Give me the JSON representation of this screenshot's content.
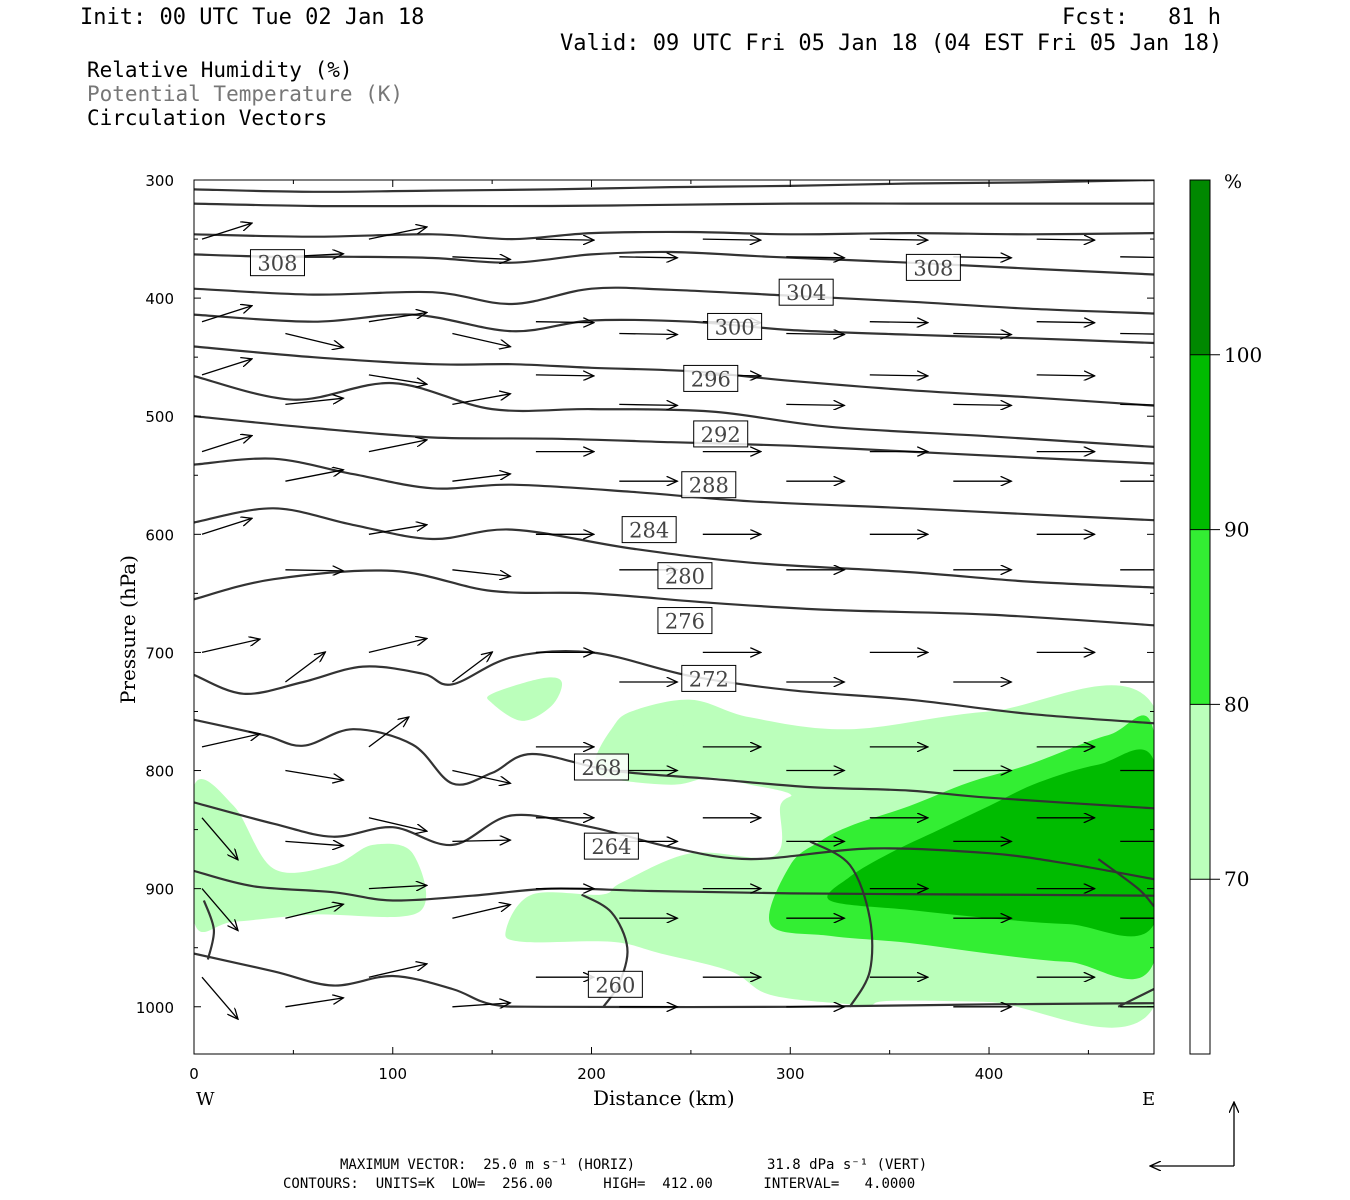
{
  "header": {
    "init": "Init: 00 UTC Tue 02 Jan 18",
    "fcst": "Fcst:   81 h",
    "valid": "Valid: 09 UTC Fri 05 Jan 18 (04 EST Fri 05 Jan 18)"
  },
  "legend": {
    "line1": "Relative Humidity (%)",
    "line2": "Potential Temperature (K)",
    "line3": "Circulation Vectors"
  },
  "chart_data": {
    "type": "cross-section",
    "xlabel": "Distance (km)",
    "ylabel": "Pressure (hPa)",
    "x_ticks": [
      "0",
      "100",
      "200",
      "300",
      "400"
    ],
    "x_tick_values": [
      0,
      100,
      200,
      300,
      400
    ],
    "y_ticks": [
      "300",
      "400",
      "500",
      "600",
      "700",
      "800",
      "900",
      "1000"
    ],
    "y_tick_values": [
      300,
      400,
      500,
      600,
      700,
      800,
      900,
      1000
    ],
    "xlim": [
      0,
      483
    ],
    "ylim": [
      1040,
      300
    ],
    "x_left_label": "W",
    "x_right_label": "E",
    "colorbar": {
      "unit": "%",
      "levels": [
        "70",
        "80",
        "90",
        "100"
      ],
      "colors": [
        "#ffffff",
        "#bbffbb",
        "#33ee33",
        "#00bb00",
        "#008800"
      ]
    },
    "theta_labels": [
      {
        "text": "308",
        "x": 42,
        "p": 370
      },
      {
        "text": "308",
        "x": 372,
        "p": 374
      },
      {
        "text": "304",
        "x": 308,
        "p": 395
      },
      {
        "text": "300",
        "x": 272,
        "p": 424
      },
      {
        "text": "296",
        "x": 260,
        "p": 468
      },
      {
        "text": "292",
        "x": 265,
        "p": 515
      },
      {
        "text": "288",
        "x": 259,
        "p": 558
      },
      {
        "text": "284",
        "x": 229,
        "p": 596
      },
      {
        "text": "280",
        "x": 247,
        "p": 635
      },
      {
        "text": "276",
        "x": 247,
        "p": 673
      },
      {
        "text": "272",
        "x": 259,
        "p": 722
      },
      {
        "text": "268",
        "x": 205,
        "p": 797
      },
      {
        "text": "264",
        "x": 210,
        "p": 864
      },
      {
        "text": "260",
        "x": 212,
        "p": 981
      }
    ],
    "theta_lines": [
      [
        [
          0,
          308
        ],
        [
          60,
          310
        ],
        [
          120,
          309
        ],
        [
          180,
          308
        ],
        [
          240,
          306
        ],
        [
          300,
          305
        ],
        [
          360,
          303
        ],
        [
          420,
          302
        ],
        [
          483,
          300
        ]
      ],
      [
        [
          0,
          320
        ],
        [
          60,
          322
        ],
        [
          120,
          322
        ],
        [
          180,
          322
        ],
        [
          240,
          321
        ],
        [
          300,
          320
        ],
        [
          360,
          320
        ],
        [
          420,
          320
        ],
        [
          483,
          320
        ]
      ],
      [
        [
          0,
          346
        ],
        [
          60,
          348
        ],
        [
          120,
          346
        ],
        [
          160,
          350
        ],
        [
          200,
          345
        ],
        [
          250,
          344
        ],
        [
          300,
          346
        ],
        [
          360,
          345
        ],
        [
          420,
          346
        ],
        [
          483,
          345
        ]
      ],
      [
        [
          0,
          363
        ],
        [
          40,
          365
        ],
        [
          80,
          365
        ],
        [
          120,
          366
        ],
        [
          160,
          370
        ],
        [
          200,
          363
        ],
        [
          240,
          361
        ],
        [
          290,
          365
        ],
        [
          360,
          370
        ],
        [
          420,
          375
        ],
        [
          483,
          380
        ]
      ],
      [
        [
          0,
          392
        ],
        [
          60,
          397
        ],
        [
          120,
          395
        ],
        [
          160,
          405
        ],
        [
          200,
          392
        ],
        [
          240,
          393
        ],
        [
          300,
          398
        ],
        [
          360,
          403
        ],
        [
          420,
          409
        ],
        [
          483,
          413
        ]
      ],
      [
        [
          0,
          414
        ],
        [
          60,
          420
        ],
        [
          110,
          414
        ],
        [
          160,
          428
        ],
        [
          200,
          419
        ],
        [
          250,
          420
        ],
        [
          300,
          427
        ],
        [
          360,
          431
        ],
        [
          420,
          434
        ],
        [
          483,
          438
        ]
      ],
      [
        [
          0,
          441
        ],
        [
          60,
          450
        ],
        [
          120,
          456
        ],
        [
          160,
          456
        ],
        [
          200,
          459
        ],
        [
          250,
          462
        ],
        [
          300,
          470
        ],
        [
          360,
          478
        ],
        [
          420,
          484
        ],
        [
          483,
          491
        ]
      ],
      [
        [
          0,
          466
        ],
        [
          50,
          486
        ],
        [
          100,
          472
        ],
        [
          150,
          494
        ],
        [
          200,
          494
        ],
        [
          260,
          496
        ],
        [
          320,
          509
        ],
        [
          400,
          517
        ],
        [
          483,
          526
        ]
      ],
      [
        [
          0,
          500
        ],
        [
          60,
          510
        ],
        [
          120,
          518
        ],
        [
          180,
          519
        ],
        [
          240,
          522
        ],
        [
          300,
          525
        ],
        [
          360,
          530
        ],
        [
          420,
          535
        ],
        [
          483,
          540
        ]
      ],
      [
        [
          0,
          541
        ],
        [
          40,
          536
        ],
        [
          80,
          549
        ],
        [
          120,
          561
        ],
        [
          160,
          558
        ],
        [
          220,
          564
        ],
        [
          280,
          572
        ],
        [
          360,
          578
        ],
        [
          420,
          583
        ],
        [
          483,
          588
        ]
      ],
      [
        [
          0,
          590
        ],
        [
          40,
          578
        ],
        [
          80,
          592
        ],
        [
          120,
          604
        ],
        [
          160,
          596
        ],
        [
          220,
          612
        ],
        [
          280,
          624
        ],
        [
          360,
          632
        ],
        [
          420,
          640
        ],
        [
          483,
          645
        ]
      ],
      [
        [
          0,
          655
        ],
        [
          40,
          638
        ],
        [
          100,
          631
        ],
        [
          150,
          648
        ],
        [
          200,
          650
        ],
        [
          260,
          658
        ],
        [
          320,
          664
        ],
        [
          400,
          668
        ],
        [
          483,
          677
        ]
      ],
      [
        [
          0,
          719
        ],
        [
          25,
          735
        ],
        [
          55,
          725
        ],
        [
          85,
          712
        ],
        [
          115,
          718
        ],
        [
          130,
          727
        ],
        [
          160,
          704
        ],
        [
          200,
          700
        ],
        [
          250,
          720
        ],
        [
          300,
          732
        ],
        [
          360,
          740
        ],
        [
          420,
          752
        ],
        [
          483,
          760
        ]
      ],
      [
        [
          0,
          757
        ],
        [
          35,
          770
        ],
        [
          55,
          779
        ],
        [
          80,
          765
        ],
        [
          110,
          778
        ],
        [
          130,
          811
        ],
        [
          150,
          802
        ],
        [
          170,
          786
        ],
        [
          210,
          800
        ],
        [
          260,
          807
        ],
        [
          310,
          814
        ],
        [
          360,
          817
        ],
        [
          400,
          823
        ],
        [
          483,
          832
        ]
      ],
      [
        [
          0,
          827
        ],
        [
          40,
          845
        ],
        [
          70,
          856
        ],
        [
          100,
          848
        ],
        [
          130,
          863
        ],
        [
          160,
          838
        ],
        [
          200,
          848
        ],
        [
          240,
          865
        ],
        [
          280,
          875
        ],
        [
          340,
          866
        ],
        [
          400,
          870
        ],
        [
          440,
          879
        ],
        [
          483,
          892
        ]
      ],
      [
        [
          0,
          885
        ],
        [
          30,
          898
        ],
        [
          70,
          903
        ],
        [
          100,
          910
        ],
        [
          140,
          906
        ],
        [
          180,
          900
        ],
        [
          230,
          902
        ],
        [
          300,
          904
        ],
        [
          400,
          905
        ],
        [
          483,
          906
        ]
      ],
      [
        [
          0,
          955
        ],
        [
          40,
          970
        ],
        [
          70,
          982
        ],
        [
          100,
          974
        ],
        [
          130,
          985
        ],
        [
          150,
          998
        ],
        [
          180,
          1000
        ],
        [
          300,
          1000
        ],
        [
          400,
          998
        ],
        [
          483,
          997
        ]
      ]
    ],
    "theta_260_closed": [
      [
        [
          206,
          1000
        ],
        [
          214,
          980
        ],
        [
          218,
          950
        ],
        [
          210,
          920
        ],
        [
          195,
          905
        ]
      ],
      [
        [
          330,
          1000
        ],
        [
          340,
          970
        ],
        [
          340,
          925
        ],
        [
          330,
          880
        ],
        [
          310,
          860
        ]
      ],
      [
        [
          465,
          1000
        ],
        [
          483,
          985
        ]
      ],
      [
        [
          455,
          875
        ],
        [
          475,
          900
        ],
        [
          483,
          915
        ]
      ],
      [
        [
          7,
          960
        ],
        [
          10,
          935
        ],
        [
          5,
          910
        ]
      ]
    ],
    "rh_regions": [
      {
        "level": "70-80",
        "poly": [
          [
            0,
            813
          ],
          [
            20,
            830
          ],
          [
            40,
            883
          ],
          [
            70,
            880
          ],
          [
            90,
            863
          ],
          [
            110,
            870
          ],
          [
            113,
            920
          ],
          [
            60,
            922
          ],
          [
            20,
            928
          ],
          [
            0,
            928
          ]
        ]
      },
      {
        "level": "70-80",
        "poly": [
          [
            150,
            735
          ],
          [
            175,
            722
          ],
          [
            185,
            725
          ],
          [
            180,
            745
          ],
          [
            165,
            758
          ],
          [
            150,
            743
          ]
        ]
      },
      {
        "level": "70-80",
        "poly": [
          [
            205,
            805
          ],
          [
            202,
            790
          ],
          [
            210,
            765
          ],
          [
            220,
            750
          ],
          [
            250,
            740
          ],
          [
            280,
            755
          ],
          [
            330,
            765
          ],
          [
            400,
            750
          ],
          [
            483,
            746
          ],
          [
            483,
            1000
          ],
          [
            400,
            996
          ],
          [
            350,
            995
          ],
          [
            340,
            999
          ],
          [
            330,
            998
          ],
          [
            290,
            990
          ],
          [
            270,
            970
          ],
          [
            235,
            955
          ],
          [
            210,
            945
          ],
          [
            165,
            945
          ],
          [
            157,
            935
          ],
          [
            170,
            905
          ],
          [
            205,
            905
          ],
          [
            215,
            895
          ],
          [
            250,
            870
          ],
          [
            292,
            872
          ],
          [
            295,
            830
          ],
          [
            300,
            820
          ],
          [
            280,
            812
          ],
          [
            260,
            806
          ],
          [
            240,
            812
          ]
        ]
      },
      {
        "level": "70-80",
        "poly": [
          [
            226,
            765
          ],
          [
            236,
            760
          ],
          [
            248,
            763
          ],
          [
            240,
            772
          ],
          [
            230,
            772
          ]
        ]
      },
      {
        "level": "80-90",
        "poly": [
          [
            290,
            930
          ],
          [
            300,
            880
          ],
          [
            315,
            860
          ],
          [
            330,
            847
          ],
          [
            360,
            830
          ],
          [
            390,
            810
          ],
          [
            420,
            795
          ],
          [
            460,
            770
          ],
          [
            483,
            768
          ],
          [
            483,
            962
          ],
          [
            440,
            962
          ],
          [
            400,
            955
          ],
          [
            360,
            946
          ],
          [
            320,
            940
          ]
        ]
      },
      {
        "level": "90-100",
        "poly": [
          [
            320,
            910
          ],
          [
            330,
            890
          ],
          [
            350,
            870
          ],
          [
            375,
            850
          ],
          [
            400,
            830
          ],
          [
            425,
            810
          ],
          [
            455,
            795
          ],
          [
            483,
            792
          ],
          [
            483,
            930
          ],
          [
            440,
            930
          ],
          [
            400,
            925
          ],
          [
            360,
            918
          ]
        ]
      }
    ]
  },
  "footer": {
    "max_vector_horiz": "MAXIMUM VECTOR:  25.0 m s⁻¹ (HORIZ)",
    "max_vector_vert": "31.8 dPa s⁻¹ (VERT)",
    "contours": "CONTOURS:  UNITS=K  LOW=  256.00      HIGH=  412.00      INTERVAL=   4.0000"
  }
}
